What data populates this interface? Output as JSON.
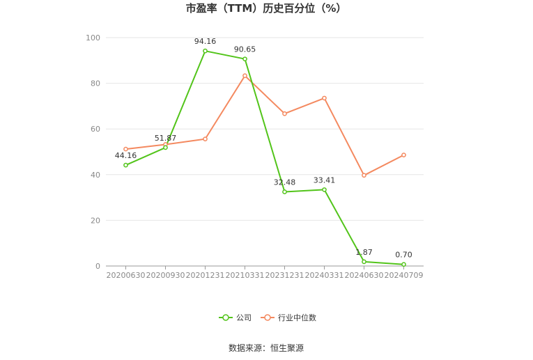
{
  "chart_data": {
    "type": "line",
    "title": "市盈率（TTM）历史百分位（%）",
    "categories": [
      "20200630",
      "20200930",
      "20201231",
      "20210331",
      "20231231",
      "20240331",
      "20240630",
      "20240709"
    ],
    "series": [
      {
        "name": "公司",
        "color": "#52c41a",
        "values": [
          44.16,
          51.87,
          94.16,
          90.65,
          32.48,
          33.41,
          1.87,
          0.7
        ],
        "labels": [
          "44.16",
          "51.87",
          "94.16",
          "90.65",
          "32.48",
          "33.41",
          "1.87",
          "0.70"
        ]
      },
      {
        "name": "行业中位数",
        "color": "#f4895f",
        "values": [
          51.2,
          53.2,
          55.6,
          83.3,
          66.7,
          73.5,
          39.7,
          48.6
        ]
      }
    ],
    "yticks": [
      0,
      20,
      40,
      60,
      80,
      100
    ],
    "ylim": [
      0,
      100
    ],
    "grid": true,
    "legend_position": "bottom-center"
  },
  "source_text": "数据来源：恒生聚源"
}
